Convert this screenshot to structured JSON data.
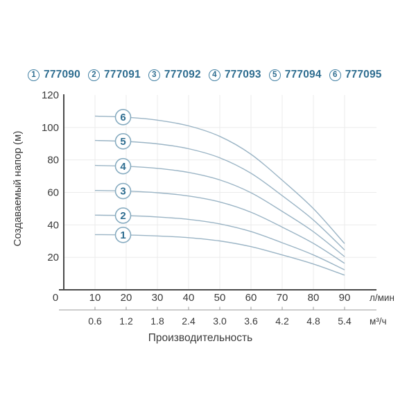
{
  "legend": {
    "items": [
      {
        "num": "1",
        "label": "777090"
      },
      {
        "num": "2",
        "label": "777091"
      },
      {
        "num": "3",
        "label": "777092"
      },
      {
        "num": "4",
        "label": "777093"
      },
      {
        "num": "5",
        "label": "777094"
      },
      {
        "num": "6",
        "label": "777095"
      }
    ]
  },
  "chart_data": {
    "type": "line",
    "title": "",
    "x_axis": {
      "label": "Производительность",
      "primary_unit": "л/мин",
      "secondary_unit": "м³/ч",
      "primary_ticks": [
        0,
        10,
        20,
        30,
        40,
        50,
        60,
        70,
        80,
        90
      ],
      "secondary_ticks": [
        "0.6",
        "1.2",
        "1.8",
        "2.4",
        "3.0",
        "3.6",
        "4.2",
        "4.8",
        "5.4"
      ],
      "range_l_min": [
        0,
        100
      ]
    },
    "y_axis": {
      "label": "Создаваемый напор (м)",
      "ticks": [
        0,
        20,
        40,
        60,
        80,
        100,
        120
      ],
      "range": [
        0,
        120
      ]
    },
    "grid": true,
    "legend_position": "top",
    "marker_at_l_min": 19,
    "series": [
      {
        "marker": "1",
        "name": "777090",
        "points": [
          [
            10,
            34
          ],
          [
            20,
            33.8
          ],
          [
            30,
            33.2
          ],
          [
            40,
            32.1
          ],
          [
            50,
            30.1
          ],
          [
            60,
            26.6
          ],
          [
            70,
            21.5
          ],
          [
            80,
            15.9
          ],
          [
            90,
            9
          ]
        ]
      },
      {
        "marker": "2",
        "name": "777091",
        "points": [
          [
            10,
            46
          ],
          [
            20,
            45.7
          ],
          [
            30,
            44.9
          ],
          [
            40,
            43.4
          ],
          [
            50,
            40.6
          ],
          [
            60,
            35.9
          ],
          [
            70,
            29
          ],
          [
            80,
            21.5
          ],
          [
            90,
            12.3
          ]
        ]
      },
      {
        "marker": "3",
        "name": "777092",
        "points": [
          [
            10,
            61.2
          ],
          [
            20,
            60.8
          ],
          [
            30,
            59.8
          ],
          [
            40,
            57.8
          ],
          [
            50,
            54.1
          ],
          [
            60,
            47.8
          ],
          [
            70,
            38.6
          ],
          [
            80,
            28.6
          ],
          [
            90,
            16.3
          ]
        ]
      },
      {
        "marker": "4",
        "name": "777093",
        "points": [
          [
            10,
            76.6
          ],
          [
            20,
            76.1
          ],
          [
            30,
            74.8
          ],
          [
            40,
            72.3
          ],
          [
            50,
            67.7
          ],
          [
            60,
            59.8
          ],
          [
            70,
            48.3
          ],
          [
            80,
            35.8
          ],
          [
            90,
            20.4
          ]
        ]
      },
      {
        "marker": "5",
        "name": "777094",
        "points": [
          [
            10,
            92
          ],
          [
            20,
            91.4
          ],
          [
            30,
            89.9
          ],
          [
            40,
            86.9
          ],
          [
            50,
            81.3
          ],
          [
            60,
            71.8
          ],
          [
            70,
            58
          ],
          [
            80,
            43
          ],
          [
            90,
            24.5
          ]
        ]
      },
      {
        "marker": "6",
        "name": "777095",
        "points": [
          [
            10,
            107
          ],
          [
            20,
            106.3
          ],
          [
            30,
            104.5
          ],
          [
            40,
            101
          ],
          [
            50,
            94.5
          ],
          [
            60,
            83.5
          ],
          [
            70,
            67.5
          ],
          [
            80,
            50
          ],
          [
            90,
            28.5
          ]
        ]
      }
    ],
    "colors": {
      "curve": "#9ab4c5",
      "marker_border": "#86abc0",
      "marker_text": "#2e6d90",
      "legend_text": "#2e6d90",
      "legend_circle_border": "#4381a4",
      "axis": "#4a4a4a",
      "grid": "#ebebeb",
      "secondary_axis": "#999999",
      "tick_text": "#3a3a3a"
    }
  }
}
